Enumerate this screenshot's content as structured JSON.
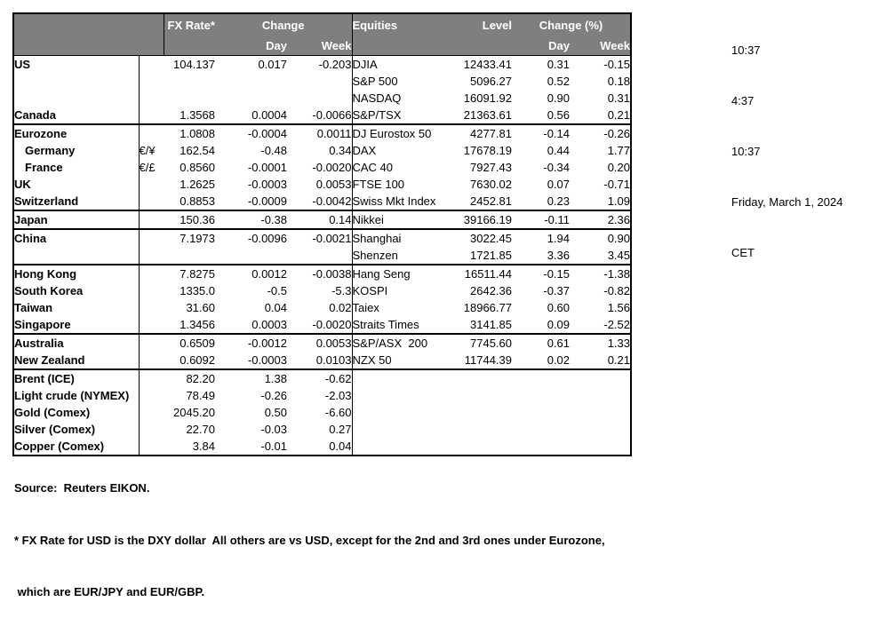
{
  "colors": {
    "header_bg": "#7f7f7f",
    "header_text": "#ffffff",
    "border": "#000000",
    "background": "#ffffff"
  },
  "timestamps": {
    "lines": [
      "10:37",
      "4:37",
      "10:37",
      "Friday, March 1, 2024",
      "CET"
    ]
  },
  "table": {
    "headers": {
      "fx_rate": "FX Rate*",
      "change": "Change",
      "day": "Day",
      "week": "Week",
      "equities": "Equities",
      "level": "Level",
      "change_pct": "Change (%)",
      "day_pct": "Day",
      "week_pct": "Week"
    },
    "rows": [
      {
        "country": "US",
        "indent": false,
        "pair": "",
        "fx": "104.137",
        "fx_day": "0.017",
        "fx_week": "-0.203",
        "equity": "DJIA",
        "level": "12433.41",
        "eq_day": "0.31",
        "eq_week": "-0.15",
        "section_top": false
      },
      {
        "country": "",
        "indent": false,
        "pair": "",
        "fx": "",
        "fx_day": "",
        "fx_week": "",
        "equity": "S&P 500",
        "level": "5096.27",
        "eq_day": "0.52",
        "eq_week": "0.18",
        "section_top": false
      },
      {
        "country": "",
        "indent": false,
        "pair": "",
        "fx": "",
        "fx_day": "",
        "fx_week": "",
        "equity": "NASDAQ",
        "level": "16091.92",
        "eq_day": "0.90",
        "eq_week": "0.31",
        "section_top": false
      },
      {
        "country": "Canada",
        "indent": false,
        "pair": "",
        "fx": "1.3568",
        "fx_day": "0.0004",
        "fx_week": "-0.0066",
        "equity": "S&P/TSX",
        "level": "21363.61",
        "eq_day": "0.56",
        "eq_week": "0.21",
        "section_top": false
      },
      {
        "country": "Eurozone",
        "indent": false,
        "pair": "",
        "fx": "1.0808",
        "fx_day": "-0.0004",
        "fx_week": "0.0011",
        "equity": "DJ Eurostox 50",
        "level": "4277.81",
        "eq_day": "-0.14",
        "eq_week": "-0.26",
        "section_top": true
      },
      {
        "country": "Germany",
        "indent": true,
        "pair": "€/¥",
        "fx": "162.54",
        "fx_day": "-0.48",
        "fx_week": "0.34",
        "equity": "DAX",
        "level": "17678.19",
        "eq_day": "0.44",
        "eq_week": "1.77",
        "section_top": false
      },
      {
        "country": "France",
        "indent": true,
        "pair": "€/£",
        "fx": "0.8560",
        "fx_day": "-0.0001",
        "fx_week": "-0.0020",
        "equity": "CAC 40",
        "level": "7927.43",
        "eq_day": "-0.34",
        "eq_week": "0.20",
        "section_top": false
      },
      {
        "country": "UK",
        "indent": false,
        "pair": "",
        "fx": "1.2625",
        "fx_day": "-0.0003",
        "fx_week": "0.0053",
        "equity": "FTSE 100",
        "level": "7630.02",
        "eq_day": "0.07",
        "eq_week": "-0.71",
        "section_top": false
      },
      {
        "country": "Switzerland",
        "indent": false,
        "pair": "",
        "fx": "0.8853",
        "fx_day": "-0.0009",
        "fx_week": "-0.0042",
        "equity": "Swiss Mkt Index",
        "level": "2452.81",
        "eq_day": "0.23",
        "eq_week": "1.09",
        "section_top": false
      },
      {
        "country": "Japan",
        "indent": false,
        "pair": "",
        "fx": "150.36",
        "fx_day": "-0.38",
        "fx_week": "0.14",
        "equity": "Nikkei",
        "level": "39166.19",
        "eq_day": "-0.11",
        "eq_week": "2.36",
        "section_top": true
      },
      {
        "country": "China",
        "indent": false,
        "pair": "",
        "fx": "7.1973",
        "fx_day": "-0.0096",
        "fx_week": "-0.0021",
        "equity": "Shanghai",
        "level": "3022.45",
        "eq_day": "1.94",
        "eq_week": "0.90",
        "section_top": true
      },
      {
        "country": "",
        "indent": false,
        "pair": "",
        "fx": "",
        "fx_day": "",
        "fx_week": "",
        "equity": "Shenzen",
        "level": "1721.85",
        "eq_day": "3.36",
        "eq_week": "3.45",
        "section_top": false
      },
      {
        "country": "Hong Kong",
        "indent": false,
        "pair": "",
        "fx": "7.8275",
        "fx_day": "0.0012",
        "fx_week": "-0.0038",
        "equity": "Hang Seng",
        "level": "16511.44",
        "eq_day": "-0.15",
        "eq_week": "-1.38",
        "section_top": true
      },
      {
        "country": "South Korea",
        "indent": false,
        "pair": "",
        "fx": "1335.0",
        "fx_day": "-0.5",
        "fx_week": "-5.3",
        "equity": "KOSPI",
        "level": "2642.36",
        "eq_day": "-0.37",
        "eq_week": "-0.82",
        "section_top": false
      },
      {
        "country": "Taiwan",
        "indent": false,
        "pair": "",
        "fx": "31.60",
        "fx_day": "0.04",
        "fx_week": "0.02",
        "equity": "Taiex",
        "level": "18966.77",
        "eq_day": "0.60",
        "eq_week": "1.56",
        "section_top": false
      },
      {
        "country": "Singapore",
        "indent": false,
        "pair": "",
        "fx": "1.3456",
        "fx_day": "0.0003",
        "fx_week": "-0.0020",
        "equity": "Straits Times",
        "level": "3141.85",
        "eq_day": "0.09",
        "eq_week": "-2.52",
        "section_top": false
      },
      {
        "country": "Australia",
        "indent": false,
        "pair": "",
        "fx": "0.6509",
        "fx_day": "-0.0012",
        "fx_week": "0.0053",
        "equity": "S&P/ASX  200",
        "level": "7745.60",
        "eq_day": "0.61",
        "eq_week": "1.33",
        "section_top": true
      },
      {
        "country": "New Zealand",
        "indent": false,
        "pair": "",
        "fx": "0.6092",
        "fx_day": "-0.0003",
        "fx_week": "0.0103",
        "equity": "NZX 50",
        "level": "11744.39",
        "eq_day": "0.02",
        "eq_week": "0.21",
        "section_top": false
      },
      {
        "country": "Brent (ICE)",
        "indent": false,
        "pair": "",
        "fx": "82.20",
        "fx_day": "1.38",
        "fx_week": "-0.62",
        "equity": "",
        "level": "",
        "eq_day": "",
        "eq_week": "",
        "section_top": true
      },
      {
        "country": "Light crude (NYMEX)",
        "indent": false,
        "pair": "",
        "fx": "78.49",
        "fx_day": "-0.26",
        "fx_week": "-2.03",
        "equity": "",
        "level": "",
        "eq_day": "",
        "eq_week": "",
        "section_top": false
      },
      {
        "country": "Gold (Comex)",
        "indent": false,
        "pair": "",
        "fx": "2045.20",
        "fx_day": "0.50",
        "fx_week": "-6.60",
        "equity": "",
        "level": "",
        "eq_day": "",
        "eq_week": "",
        "section_top": false
      },
      {
        "country": "Silver (Comex)",
        "indent": false,
        "pair": "",
        "fx": "22.70",
        "fx_day": "-0.03",
        "fx_week": "0.27",
        "equity": "",
        "level": "",
        "eq_day": "",
        "eq_week": "",
        "section_top": false
      },
      {
        "country": "Copper (Comex)",
        "indent": false,
        "pair": "",
        "fx": "3.84",
        "fx_day": "-0.01",
        "fx_week": "0.04",
        "equity": "",
        "level": "",
        "eq_day": "",
        "eq_week": "",
        "section_top": false
      }
    ]
  },
  "footer": {
    "source": "Source:  Reuters EIKON.",
    "note1": "* FX Rate for USD is the DXY dollar  All others are vs USD, except for the 2nd and 3rd ones under Eurozone,",
    "note2": " which are EUR/JPY and EUR/GBP."
  }
}
